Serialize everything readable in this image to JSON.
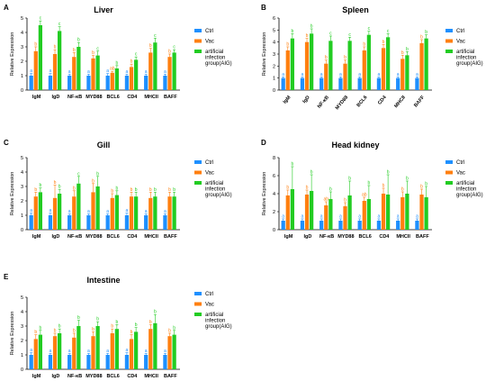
{
  "colors": {
    "Ctrl": "#1e90ff",
    "Vac": "#ff7f0e",
    "AIG": "#22cc22",
    "axis": "#000000"
  },
  "chart_data": [
    {
      "panel": "A",
      "title": "Liver",
      "type": "bar",
      "ylabel": "Relative Expression",
      "ylim": [
        0,
        5
      ],
      "yticks": [
        "0",
        "1",
        "2",
        "3",
        "4",
        "5"
      ],
      "categories": [
        "IgM",
        "IgD",
        "NF-κB",
        "MYD88",
        "BCL6",
        "CD4",
        "MHCII",
        "BAFF"
      ],
      "legend": [
        "Ctrl",
        "Vac",
        "artificial infection group(AIG)"
      ],
      "legend_position": "right",
      "series": [
        {
          "name": "Ctrl",
          "values": [
            1.0,
            1.0,
            1.0,
            1.0,
            1.0,
            1.0,
            1.0,
            1.0
          ],
          "errors": [
            0.15,
            0.15,
            0.1,
            0.1,
            0.15,
            0.1,
            0.1,
            0.1
          ],
          "letters": [
            "a",
            "a",
            "a",
            "a",
            "a",
            "a",
            "a",
            "a"
          ]
        },
        {
          "name": "Vac",
          "values": [
            2.7,
            2.5,
            2.3,
            2.2,
            1.2,
            1.6,
            2.6,
            2.3
          ],
          "errors": [
            0.3,
            0.3,
            0.3,
            0.2,
            0.1,
            0.2,
            0.3,
            0.2
          ],
          "letters": [
            "b",
            "b",
            "b",
            "b",
            "ab",
            "b",
            "b",
            "b"
          ]
        },
        {
          "name": "artificial infection group(AIG)",
          "values": [
            4.5,
            4.1,
            3.0,
            2.4,
            1.5,
            2.1,
            3.3,
            2.6
          ],
          "errors": [
            0.3,
            0.3,
            0.3,
            0.3,
            0.2,
            0.2,
            0.3,
            0.2
          ],
          "letters": [
            "c",
            "c",
            "b",
            "c",
            "b",
            "c",
            "c",
            "c"
          ]
        }
      ]
    },
    {
      "panel": "B",
      "title": "Spleen",
      "type": "bar",
      "ylabel": "Relative Expression",
      "ylim": [
        0,
        6
      ],
      "yticks": [
        "0",
        "1",
        "2",
        "3",
        "4",
        "5",
        "6"
      ],
      "categories": [
        "IgM",
        "IgD",
        "NF-κB",
        "MYD88",
        "BCL6",
        "CD4",
        "MHCII",
        "BAFF"
      ],
      "legend": [
        "Ctrl",
        "Vac",
        "artificial infection group(AIG)"
      ],
      "legend_position": "right",
      "series": [
        {
          "name": "Ctrl",
          "values": [
            1.0,
            1.0,
            1.0,
            1.0,
            1.0,
            1.0,
            1.0,
            1.0
          ],
          "errors": [
            0.1,
            0.1,
            0.1,
            0.1,
            0.1,
            0.1,
            0.1,
            0.1
          ],
          "letters": [
            "a",
            "a",
            "a",
            "a",
            "a",
            "a",
            "a",
            "a"
          ]
        },
        {
          "name": "Vac",
          "values": [
            3.3,
            4.0,
            2.2,
            2.2,
            3.3,
            3.5,
            2.6,
            3.9
          ],
          "errors": [
            0.3,
            0.3,
            0.3,
            0.3,
            0.3,
            0.3,
            0.3,
            0.3
          ],
          "letters": [
            "b",
            "b",
            "b",
            "b",
            "b",
            "b",
            "b",
            "b"
          ]
        },
        {
          "name": "artificial infection group(AIG)",
          "values": [
            4.3,
            4.7,
            4.1,
            4.1,
            4.6,
            4.4,
            2.9,
            4.3
          ],
          "errors": [
            0.4,
            0.4,
            0.4,
            0.3,
            0.3,
            0.3,
            0.3,
            0.3
          ],
          "letters": [
            "b",
            "b",
            "c",
            "c",
            "c",
            "c",
            "b",
            "b"
          ]
        }
      ]
    },
    {
      "panel": "C",
      "title": "Gill",
      "type": "bar",
      "ylabel": "Relative Expression",
      "ylim": [
        0,
        5
      ],
      "yticks": [
        "0",
        "1",
        "2",
        "3",
        "4",
        "5"
      ],
      "categories": [
        "IgM",
        "IgD",
        "NF-κB",
        "MYD88",
        "BCL6",
        "CD4",
        "MHCII",
        "BAFF"
      ],
      "legend": [
        "Ctrl",
        "Vac",
        "artificial infection group(AIG)"
      ],
      "legend_position": "right",
      "series": [
        {
          "name": "Ctrl",
          "values": [
            1.0,
            1.0,
            1.0,
            1.0,
            1.0,
            1.0,
            1.0,
            1.0
          ],
          "errors": [
            0.15,
            0.15,
            0.1,
            0.1,
            0.1,
            0.15,
            0.1,
            0.1
          ],
          "letters": [
            "a",
            "a",
            "a",
            "a",
            "a",
            "a",
            "a",
            "a"
          ]
        },
        {
          "name": "Vac",
          "values": [
            2.3,
            2.2,
            2.3,
            2.6,
            2.2,
            2.3,
            2.2,
            2.3
          ],
          "errors": [
            0.3,
            0.9,
            0.4,
            0.6,
            0.3,
            0.3,
            0.4,
            0.3
          ],
          "letters": [
            "b",
            "b",
            "b",
            "b",
            "b",
            "b",
            "b",
            "b"
          ]
        },
        {
          "name": "artificial infection group(AIG)",
          "values": [
            2.6,
            2.5,
            3.2,
            3.0,
            2.4,
            2.3,
            2.3,
            2.3
          ],
          "errors": [
            0.3,
            0.3,
            0.5,
            0.7,
            0.3,
            0.3,
            0.3,
            0.3
          ],
          "letters": [
            "b",
            "b",
            "c",
            "b",
            "b",
            "b",
            "b",
            "b"
          ]
        }
      ]
    },
    {
      "panel": "D",
      "title": "Head kidney",
      "type": "bar",
      "ylabel": "Relative Expression",
      "ylim": [
        0,
        8
      ],
      "yticks": [
        "0",
        "2",
        "4",
        "6",
        "8"
      ],
      "categories": [
        "IgM",
        "IgD",
        "NF-κB",
        "MYD88",
        "BCL6",
        "CD4",
        "MHCII",
        "BAFF"
      ],
      "legend": [
        "Ctrl",
        "Vac",
        "artificial infection group(AIG)"
      ],
      "legend_position": "right",
      "series": [
        {
          "name": "Ctrl",
          "values": [
            1.0,
            1.0,
            1.0,
            1.0,
            1.0,
            1.0,
            1.0,
            1.0
          ],
          "errors": [
            0.2,
            0.2,
            0.2,
            0.2,
            0.2,
            0.2,
            0.2,
            0.2
          ],
          "letters": [
            "a",
            "a",
            "a",
            "a",
            "a",
            "a",
            "a",
            "a"
          ]
        },
        {
          "name": "Vac",
          "values": [
            3.8,
            3.9,
            2.7,
            2.6,
            3.2,
            4.0,
            3.6,
            3.9
          ],
          "errors": [
            0.6,
            0.5,
            0.4,
            0.4,
            0.4,
            0.6,
            0.6,
            0.6
          ],
          "letters": [
            "b",
            "b",
            "ab",
            "b",
            "ab",
            "b",
            "b",
            "b"
          ]
        },
        {
          "name": "artificial infection group(AIG)",
          "values": [
            4.5,
            4.3,
            3.4,
            3.8,
            3.4,
            3.9,
            4.0,
            3.6
          ],
          "errors": [
            2.5,
            1.8,
            0.8,
            1.6,
            1.5,
            2.2,
            1.4,
            1.2
          ],
          "letters": [
            "b",
            "b",
            "b",
            "b",
            "b",
            "b",
            "b",
            "b"
          ]
        }
      ]
    },
    {
      "panel": "E",
      "title": "Intestine",
      "type": "bar",
      "ylabel": "Relative Expression",
      "ylim": [
        0,
        5
      ],
      "yticks": [
        "0",
        "1",
        "2",
        "3",
        "4",
        "5"
      ],
      "categories": [
        "IgM",
        "IgD",
        "NF-κB",
        "MYD88",
        "BCL6",
        "CD4",
        "MHCII",
        "BAFF"
      ],
      "legend": [
        "Ctrl",
        "Vac",
        "artificial infection group(AIG)"
      ],
      "legend_position": "right",
      "series": [
        {
          "name": "Ctrl",
          "values": [
            1.0,
            1.0,
            1.0,
            1.0,
            1.0,
            1.0,
            1.0,
            1.0
          ],
          "errors": [
            0.15,
            0.1,
            0.1,
            0.1,
            0.1,
            0.15,
            0.1,
            0.1
          ],
          "letters": [
            "a",
            "a",
            "a",
            "a",
            "a",
            "a",
            "a",
            "a"
          ]
        },
        {
          "name": "Vac",
          "values": [
            2.1,
            2.3,
            2.2,
            2.3,
            2.5,
            2.1,
            2.8,
            2.3
          ],
          "errors": [
            0.3,
            0.2,
            0.3,
            0.3,
            0.3,
            0.3,
            0.3,
            0.2
          ],
          "letters": [
            "b",
            "b",
            "b",
            "b",
            "b",
            "b",
            "b",
            "b"
          ]
        },
        {
          "name": "artificial infection group(AIG)",
          "values": [
            2.4,
            2.5,
            3.0,
            3.0,
            2.8,
            2.6,
            3.2,
            2.4
          ],
          "errors": [
            0.3,
            0.3,
            0.4,
            0.3,
            0.3,
            0.3,
            0.6,
            0.3
          ],
          "letters": [
            "b",
            "b",
            "b",
            "b",
            "b",
            "b",
            "b",
            "b"
          ]
        }
      ]
    }
  ]
}
